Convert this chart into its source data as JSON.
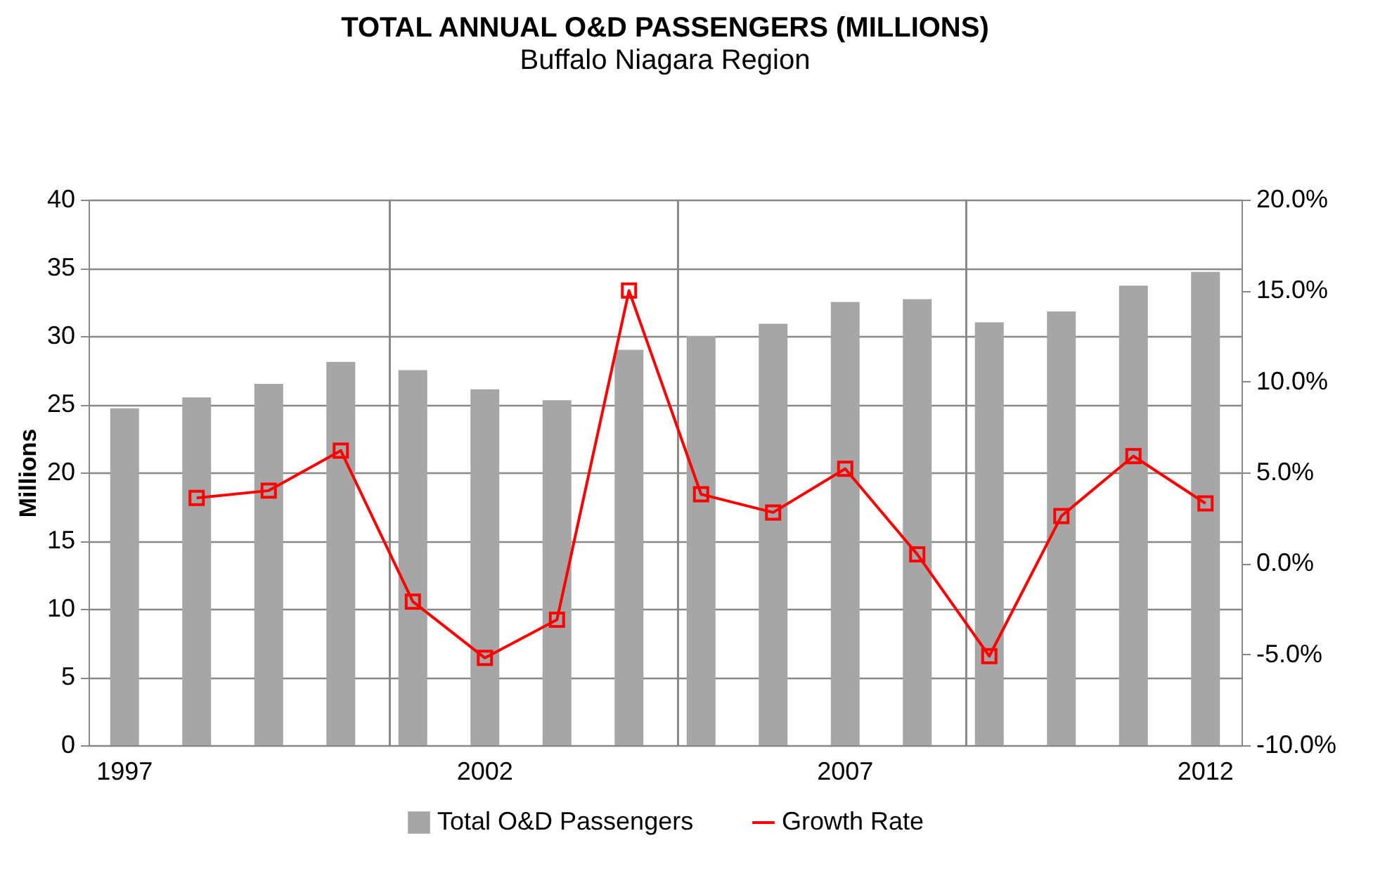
{
  "chart_data": {
    "type": "bar",
    "title": "TOTAL ANNUAL O&D PASSENGERS (MILLIONS)",
    "subtitle": "Buffalo Niagara Region",
    "ylabel": "Millions",
    "categories": [
      "1997",
      null,
      null,
      null,
      null,
      "2002",
      null,
      null,
      null,
      null,
      "2007",
      null,
      null,
      null,
      null,
      "2012"
    ],
    "series": [
      {
        "name": "Total O&D Passengers",
        "color": "#a6a6a6",
        "values": [
          24.7,
          25.5,
          26.5,
          28.1,
          27.5,
          26.1,
          25.3,
          29.0,
          30.0,
          30.9,
          32.5,
          32.7,
          31.0,
          31.8,
          33.7,
          34.7
        ]
      },
      {
        "name": "Growth Rate",
        "type": "line",
        "axis": "y2",
        "color": "#ff0000",
        "marker": "square",
        "values": [
          null,
          3.6,
          4.0,
          6.2,
          -2.1,
          -5.2,
          -3.1,
          15.0,
          3.8,
          2.8,
          5.2,
          0.5,
          -5.1,
          2.6,
          5.9,
          3.3
        ]
      }
    ],
    "ylim": [
      0,
      40
    ],
    "yticks": [
      0,
      5,
      10,
      15,
      20,
      25,
      30,
      35,
      40
    ],
    "y2lim": [
      -10,
      20
    ],
    "y2ticks": [
      {
        "value": -10,
        "label": "-10.0%"
      },
      {
        "value": -5,
        "label": "-5.0%"
      },
      {
        "value": 0,
        "label": "0.0%"
      },
      {
        "value": 5,
        "label": "5.0%"
      },
      {
        "value": 10,
        "label": "10.0%"
      },
      {
        "value": 15,
        "label": "15.0%"
      },
      {
        "value": 20,
        "label": "20.0%"
      }
    ],
    "grid": true,
    "legend": "bottom"
  }
}
